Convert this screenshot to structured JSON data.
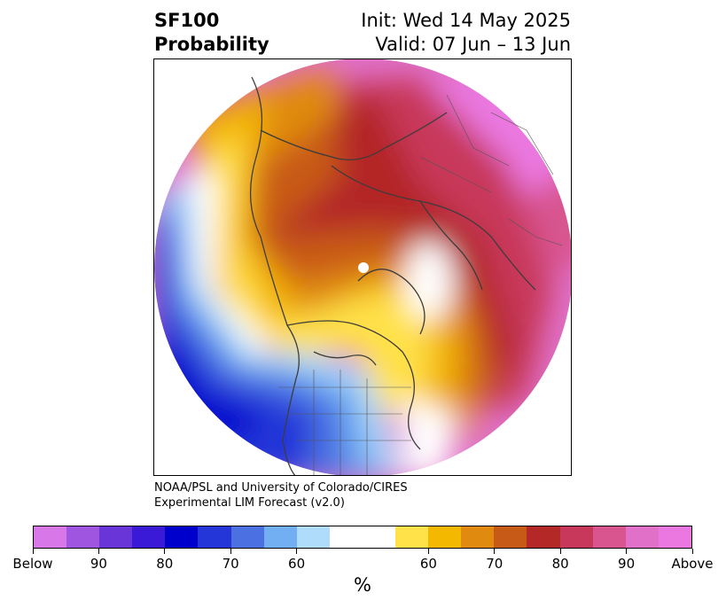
{
  "header": {
    "variable": "SF100",
    "subtitle": "Probability",
    "init": "Init: Wed 14 May 2025",
    "valid": "Valid: 07 Jun – 13 Jun"
  },
  "map": {
    "projection": "north polar stereographic",
    "region": "Northern Hemisphere (North America, Arctic, Eurasia)"
  },
  "credit": {
    "line1": "NOAA/PSL and University of Colorado/CIRES",
    "line2": "Experimental LIM Forecast (v2.0)"
  },
  "colorbar": {
    "unit": "%",
    "colors": [
      "#d877e8",
      "#9f55e0",
      "#6a35d8",
      "#3a1ad6",
      "#0000cc",
      "#2436d8",
      "#4a70e2",
      "#72aef2",
      "#aedcfa",
      "#ffffff",
      "#ffe14a",
      "#f4b800",
      "#e08a10",
      "#c85a18",
      "#b42828",
      "#c8385a",
      "#d85590",
      "#e070c8",
      "#ea78e0"
    ],
    "tick_labels": [
      "Below",
      "90",
      "80",
      "70",
      "60",
      "60",
      "70",
      "80",
      "90",
      "Above"
    ]
  }
}
